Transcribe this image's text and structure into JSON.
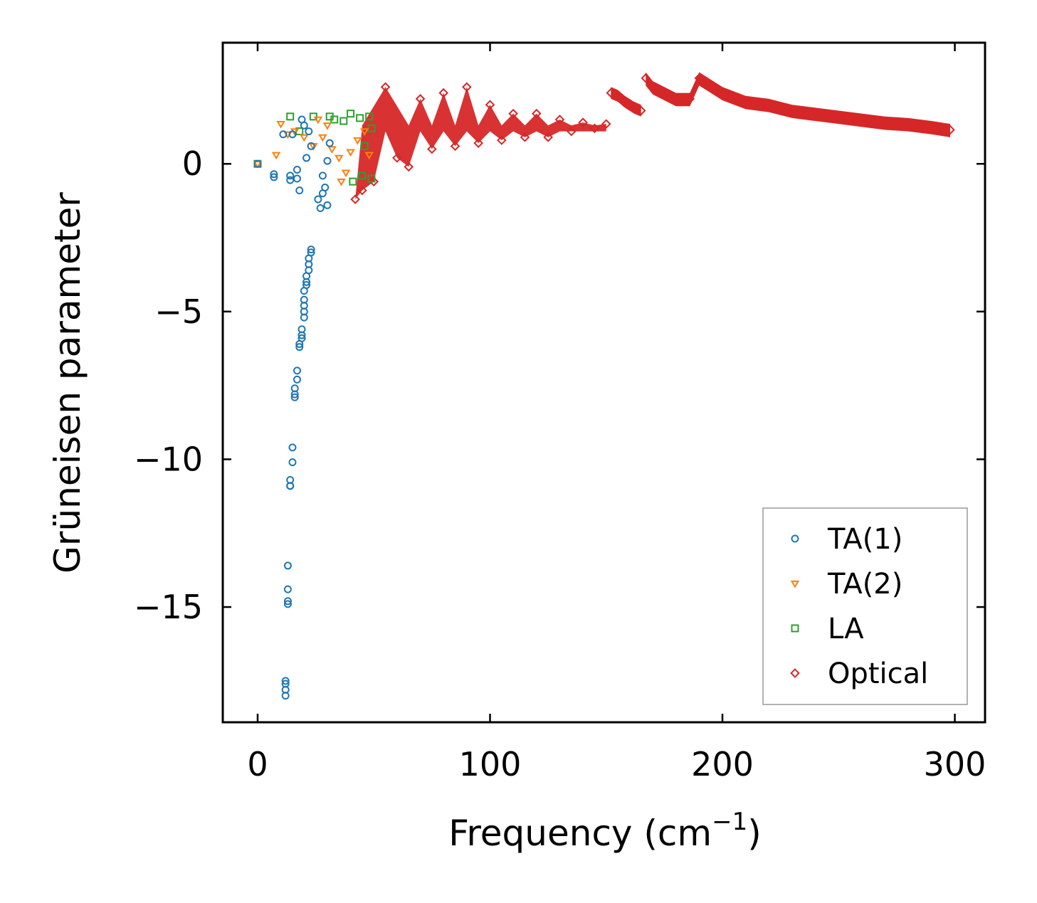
{
  "chart_data": {
    "type": "scatter",
    "xlabel": "Frequency (cm",
    "xlabel_sup": "−1",
    "xlabel_end": ")",
    "ylabel": "Grüneisen parameter",
    "xlim": [
      -15,
      313
    ],
    "ylim": [
      -18.9,
      4.1
    ],
    "xticks": [
      0,
      100,
      200,
      300
    ],
    "xtick_labels": [
      "0",
      "100",
      "200",
      "300"
    ],
    "yticks": [
      0,
      -5,
      -10,
      -15
    ],
    "ytick_labels": [
      "0",
      "−5",
      "−10",
      "−15"
    ],
    "grid": false,
    "legend_position": "bottom-right",
    "legend": [
      {
        "name": "TA(1)",
        "marker": "circle",
        "color": "#1f77b4"
      },
      {
        "name": "TA(2)",
        "marker": "triangle-down",
        "color": "#ff7f0e"
      },
      {
        "name": "LA",
        "marker": "square",
        "color": "#2ca02c"
      },
      {
        "name": "Optical",
        "marker": "diamond",
        "color": "#d62728"
      }
    ],
    "series": [
      {
        "name": "TA(1)",
        "points": [
          [
            0,
            0
          ],
          [
            7,
            -0.35
          ],
          [
            7,
            -0.45
          ],
          [
            11,
            1.0
          ],
          [
            12,
            -17.5
          ],
          [
            12,
            -17.6
          ],
          [
            12,
            -17.8
          ],
          [
            12,
            -18.0
          ],
          [
            13,
            -13.6
          ],
          [
            13,
            -14.4
          ],
          [
            13,
            -14.8
          ],
          [
            13,
            -14.9
          ],
          [
            14,
            -10.7
          ],
          [
            14,
            -10.9
          ],
          [
            14,
            -10.9
          ],
          [
            15,
            -10.1
          ],
          [
            15,
            -9.6
          ],
          [
            14,
            -0.4
          ],
          [
            14,
            -0.55
          ],
          [
            15,
            1.0
          ],
          [
            16,
            -7.8
          ],
          [
            16,
            -7.6
          ],
          [
            16,
            -7.9
          ],
          [
            17,
            -7.3
          ],
          [
            17,
            -7.0
          ],
          [
            17,
            -0.5
          ],
          [
            17,
            -0.2
          ],
          [
            18,
            -6.2
          ],
          [
            18,
            -6.1
          ],
          [
            18,
            -0.9
          ],
          [
            19,
            -5.8
          ],
          [
            19,
            -5.6
          ],
          [
            19,
            -5.9
          ],
          [
            20,
            -5.2
          ],
          [
            20,
            -5.0
          ],
          [
            20,
            -4.8
          ],
          [
            20,
            -4.6
          ],
          [
            20,
            -4.3
          ],
          [
            21,
            -4.1
          ],
          [
            21,
            -4.0
          ],
          [
            21,
            -3.8
          ],
          [
            22,
            -3.6
          ],
          [
            22,
            -3.4
          ],
          [
            22,
            -3.2
          ],
          [
            23,
            -3.0
          ],
          [
            23,
            -2.9
          ],
          [
            19,
            1.5
          ],
          [
            20,
            1.3
          ],
          [
            22,
            1.1
          ],
          [
            23,
            0.6
          ],
          [
            21,
            0.2
          ],
          [
            26,
            -1.2
          ],
          [
            27,
            -1.5
          ],
          [
            28,
            -1.0
          ],
          [
            29,
            -0.8
          ],
          [
            30,
            -1.4
          ],
          [
            30,
            0.1
          ],
          [
            31,
            0.7
          ],
          [
            28,
            -0.4
          ]
        ]
      },
      {
        "name": "TA(2)",
        "points": [
          [
            0,
            0
          ],
          [
            8,
            0.3
          ],
          [
            10,
            1.35
          ],
          [
            13,
            1.0
          ],
          [
            16,
            1.1
          ],
          [
            20,
            0.9
          ],
          [
            24,
            0.6
          ],
          [
            28,
            0.9
          ],
          [
            32,
            0.5
          ],
          [
            35,
            0.2
          ],
          [
            38,
            -0.3
          ],
          [
            40,
            0.4
          ],
          [
            43,
            0.8
          ],
          [
            46,
            1.1
          ],
          [
            48,
            0.3
          ],
          [
            36,
            -0.6
          ],
          [
            30,
            1.3
          ],
          [
            26,
            1.5
          ]
        ]
      },
      {
        "name": "LA",
        "points": [
          [
            0,
            0
          ],
          [
            14,
            1.6
          ],
          [
            18,
            1.1
          ],
          [
            24,
            1.6
          ],
          [
            31,
            1.6
          ],
          [
            37,
            1.45
          ],
          [
            40,
            1.7
          ],
          [
            44,
            1.55
          ],
          [
            48,
            1.6
          ],
          [
            41,
            -0.6
          ],
          [
            45,
            -0.4
          ],
          [
            49,
            -0.5
          ],
          [
            46,
            0.6
          ],
          [
            49,
            1.2
          ],
          [
            33,
            1.5
          ]
        ]
      },
      {
        "name": "Optical",
        "points": [
          [
            42,
            -1.2
          ],
          [
            45,
            -0.9
          ],
          [
            50,
            -0.6
          ],
          [
            55,
            2.6
          ],
          [
            60,
            0.2
          ],
          [
            65,
            -0.1
          ],
          [
            70,
            2.2
          ],
          [
            75,
            0.5
          ],
          [
            80,
            2.4
          ],
          [
            85,
            0.6
          ],
          [
            90,
            2.6
          ],
          [
            95,
            0.7
          ],
          [
            100,
            2.0
          ],
          [
            105,
            0.8
          ],
          [
            110,
            1.7
          ],
          [
            115,
            0.9
          ],
          [
            120,
            1.7
          ],
          [
            125,
            0.9
          ],
          [
            130,
            1.5
          ],
          [
            135,
            1.1
          ],
          [
            140,
            1.4
          ],
          [
            145,
            1.2
          ],
          [
            150,
            1.35
          ],
          [
            152,
            2.4
          ],
          [
            155,
            2.3
          ],
          [
            158,
            2.1
          ],
          [
            162,
            1.9
          ],
          [
            165,
            1.8
          ],
          [
            167,
            2.9
          ],
          [
            170,
            2.6
          ],
          [
            175,
            2.4
          ],
          [
            180,
            2.2
          ],
          [
            186,
            2.2
          ],
          [
            190,
            2.9
          ],
          [
            200,
            2.4
          ],
          [
            210,
            2.1
          ],
          [
            220,
            2.0
          ],
          [
            230,
            1.8
          ],
          [
            240,
            1.7
          ],
          [
            250,
            1.6
          ],
          [
            260,
            1.5
          ],
          [
            270,
            1.4
          ],
          [
            280,
            1.35
          ],
          [
            290,
            1.25
          ],
          [
            298,
            1.15
          ]
        ]
      }
    ]
  }
}
